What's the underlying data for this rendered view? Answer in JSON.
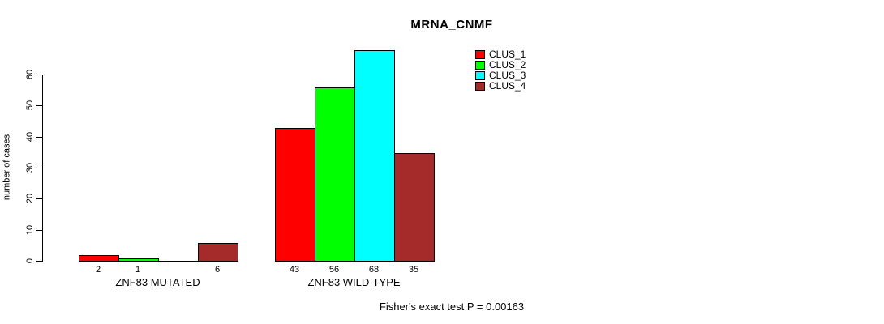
{
  "title": "MRNA_CNMF",
  "chart_data": {
    "type": "bar",
    "title": "MRNA_CNMF",
    "xlabel": "",
    "ylabel": "number of cases",
    "ylim": [
      0,
      68
    ],
    "yticks": [
      0,
      10,
      20,
      30,
      40,
      50,
      60
    ],
    "grid": false,
    "legend_position": "top-right, outside plot",
    "series": [
      {
        "name": "CLUS_1",
        "color": "#ff0000"
      },
      {
        "name": "CLUS_2",
        "color": "#00ff00"
      },
      {
        "name": "CLUS_3",
        "color": "#00ffff"
      },
      {
        "name": "CLUS_4",
        "color": "#a52a2a"
      }
    ],
    "categories": [
      "ZNF83 MUTATED",
      "ZNF83 WILD-TYPE"
    ],
    "groups": [
      {
        "label": "ZNF83 MUTATED",
        "values": [
          2,
          1,
          0,
          6
        ],
        "bar_labels": [
          "2",
          "1",
          "",
          "6"
        ]
      },
      {
        "label": "ZNF83 WILD-TYPE",
        "values": [
          43,
          56,
          68,
          35
        ],
        "bar_labels": [
          "43",
          "56",
          "68",
          "35"
        ]
      }
    ],
    "annotation": "Fisher's exact test P = 0.00163"
  }
}
